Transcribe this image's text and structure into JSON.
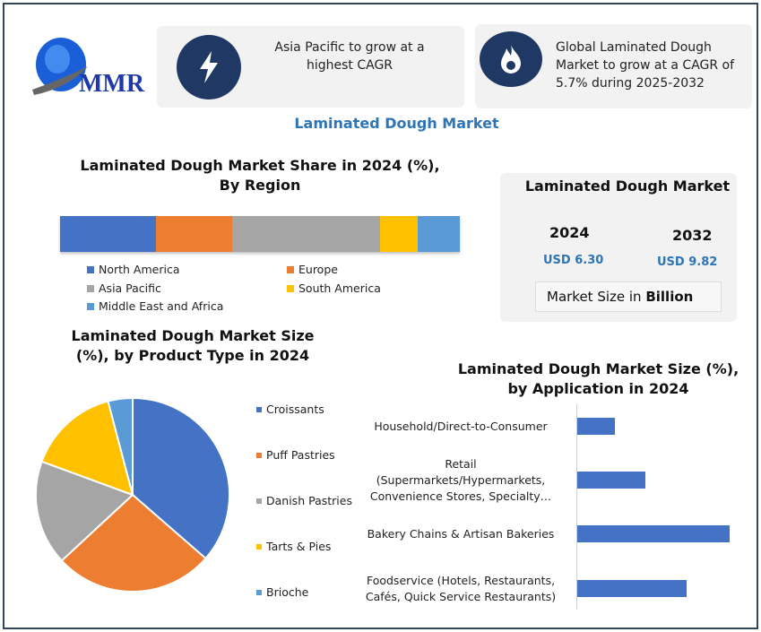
{
  "logo": {
    "text": "MMR"
  },
  "cards": [
    {
      "icon": "lightning-icon",
      "text": "Asia Pacific to grow at a highest CAGR"
    },
    {
      "icon": "flame-icon",
      "text": "Global Laminated Dough Market to grow at a CAGR of 5.7% during 2025-2032"
    }
  ],
  "main_title": "Laminated Dough Market",
  "market_box": {
    "title": "Laminated Dough Market",
    "year1": "2024",
    "value1": "USD 6.30",
    "year2": "2032",
    "value2": "USD 9.82",
    "footer_prefix": "Market Size in ",
    "footer_bold": "Billion"
  },
  "colors": {
    "blue": "#4472c4",
    "orange": "#ed7d31",
    "gray": "#a5a5a5",
    "yellow": "#ffc000",
    "lightblue": "#5b9bd5",
    "accent": "#2e75b6",
    "navy": "#1f3864"
  },
  "chart_data": [
    {
      "type": "bar",
      "orientation": "horizontal-stacked",
      "title": "Laminated Dough Market Share in 2024 (%), By Region",
      "series": [
        {
          "name": "North America",
          "values": [
            24
          ]
        },
        {
          "name": "Europe",
          "values": [
            19
          ]
        },
        {
          "name": "Asia Pacific",
          "values": [
            37
          ]
        },
        {
          "name": "South America",
          "values": [
            9.5
          ]
        },
        {
          "name": "Middle East and Africa",
          "values": [
            10.5
          ]
        }
      ],
      "legend": "bottom"
    },
    {
      "type": "pie",
      "title": "Laminated Dough Market Size (%), by Product Type in 2024",
      "categories": [
        "Croissants",
        "Puff Pastries",
        "Danish Pastries",
        "Tarts & Pies",
        "Brioche"
      ],
      "values": [
        36.4,
        26.7,
        17.5,
        15.3,
        4.1
      ],
      "legend": "right"
    },
    {
      "type": "bar",
      "orientation": "horizontal",
      "title": "Laminated Dough Market Size (%), by Application in 2024",
      "categories": [
        "Household/Direct-to-Consumer",
        "Retail (Supermarkets/Hypermarkets, Convenience Stores, Specialty…",
        "Bakery Chains & Artisan Bakeries",
        "Foodservice (Hotels, Restaurants, Cafés, Quick Service Restaurants)"
      ],
      "values": [
        10.2,
        18.5,
        41.5,
        29.8
      ]
    }
  ]
}
